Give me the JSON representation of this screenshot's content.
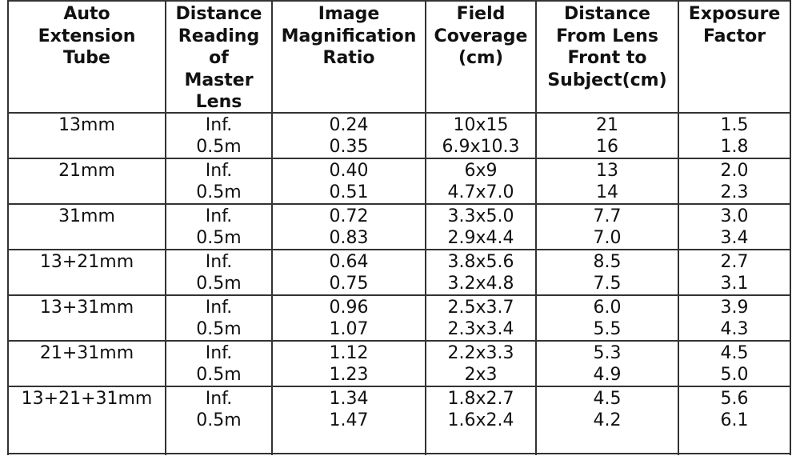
{
  "table": {
    "headers": [
      [
        "Auto",
        "Extension",
        "Tube"
      ],
      [
        "Distance",
        "Reading",
        "of",
        "Master",
        "Lens"
      ],
      [
        "Image",
        "Magnification",
        "Ratio"
      ],
      [
        "Field",
        "Coverage",
        "(cm)"
      ],
      [
        "Distance",
        "From Lens",
        "Front to",
        "Subject(cm)"
      ],
      [
        "Exposure",
        "Factor"
      ]
    ],
    "groups": [
      {
        "tube": "13mm",
        "rows": [
          [
            "Inf.",
            "0.24",
            "10x15",
            "21",
            "1.5"
          ],
          [
            "0.5m",
            "0.35",
            "6.9x10.3",
            "16",
            "1.8"
          ]
        ]
      },
      {
        "tube": "21mm",
        "rows": [
          [
            "Inf.",
            "0.40",
            "6x9",
            "13",
            "2.0"
          ],
          [
            "0.5m",
            "0.51",
            "4.7x7.0",
            "14",
            "2.3"
          ]
        ]
      },
      {
        "tube": "31mm",
        "rows": [
          [
            "Inf.",
            "0.72",
            "3.3x5.0",
            "7.7",
            "3.0"
          ],
          [
            "0.5m",
            "0.83",
            "2.9x4.4",
            "7.0",
            "3.4"
          ]
        ]
      },
      {
        "tube": "13+21mm",
        "rows": [
          [
            "Inf.",
            "0.64",
            "3.8x5.6",
            "8.5",
            "2.7"
          ],
          [
            "0.5m",
            "0.75",
            "3.2x4.8",
            "7.5",
            "3.1"
          ]
        ]
      },
      {
        "tube": "13+31mm",
        "rows": [
          [
            "Inf.",
            "0.96",
            "2.5x3.7",
            "6.0",
            "3.9"
          ],
          [
            "0.5m",
            "1.07",
            "2.3x3.4",
            "5.5",
            "4.3"
          ]
        ]
      },
      {
        "tube": "21+31mm",
        "rows": [
          [
            "Inf.",
            "1.12",
            "2.2x3.3",
            "5.3",
            "4.5"
          ],
          [
            "0.5m",
            "1.23",
            "2x3",
            "4.9",
            "5.0"
          ]
        ]
      },
      {
        "tube": "13+21+31mm",
        "rows": [
          [
            "Inf.",
            "1.34",
            "1.8x2.7",
            "4.5",
            "5.6"
          ],
          [
            "0.5m",
            "1.47",
            "1.6x2.4",
            "4.2",
            "6.1"
          ]
        ]
      }
    ]
  }
}
